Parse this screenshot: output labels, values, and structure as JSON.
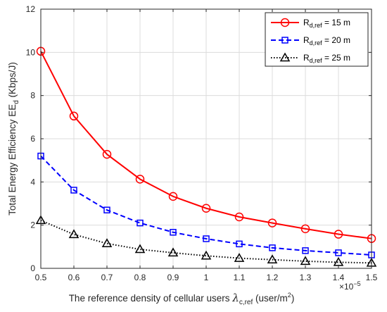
{
  "chart_data": {
    "type": "line",
    "x": [
      0.5,
      0.6,
      0.7,
      0.8,
      0.9,
      1.0,
      1.1,
      1.2,
      1.3,
      1.4,
      1.5
    ],
    "xlim": [
      0.5,
      1.5
    ],
    "ylim": [
      0,
      12
    ],
    "xticks": [
      "0.5",
      "0.6",
      "0.7",
      "0.8",
      "0.9",
      "1",
      "1.1",
      "1.2",
      "1.3",
      "1.4",
      "1.5"
    ],
    "yticks": [
      "0",
      "2",
      "4",
      "6",
      "8",
      "10",
      "12"
    ],
    "grid": true,
    "legend_position": "top-right",
    "xlabel": {
      "prefix": "The reference density of cellular users ",
      "symbol": "λ",
      "symbol_sub": "c,ref",
      "unit": " (user/m",
      "unit_sup": "2",
      "unit_end": ")",
      "scale": "×10",
      "scale_exp": "−5"
    },
    "ylabel": {
      "text": "Total Energy Efficiency EE",
      "sub": "d",
      "unit": " (Kbps/J)"
    },
    "series": [
      {
        "legend_main": "R",
        "legend_sub": "d,ref",
        "legend_rest": " = 15 m",
        "color": "#ff0000",
        "dash": "solid",
        "marker": "circle",
        "values": [
          10.05,
          7.05,
          5.28,
          4.13,
          3.33,
          2.78,
          2.38,
          2.1,
          1.83,
          1.58,
          1.38
        ]
      },
      {
        "legend_main": "R",
        "legend_sub": "d,ref",
        "legend_rest": " = 20 m",
        "color": "#0000ff",
        "dash": "dashed",
        "marker": "square",
        "values": [
          5.2,
          3.62,
          2.7,
          2.1,
          1.67,
          1.37,
          1.13,
          0.95,
          0.82,
          0.72,
          0.62
        ]
      },
      {
        "legend_main": "R",
        "legend_sub": "d,ref",
        "legend_rest": " = 25 m",
        "color": "#000000",
        "dash": "dotted",
        "marker": "triangle",
        "values": [
          2.22,
          1.57,
          1.15,
          0.88,
          0.72,
          0.58,
          0.47,
          0.4,
          0.33,
          0.28,
          0.25
        ]
      }
    ]
  }
}
